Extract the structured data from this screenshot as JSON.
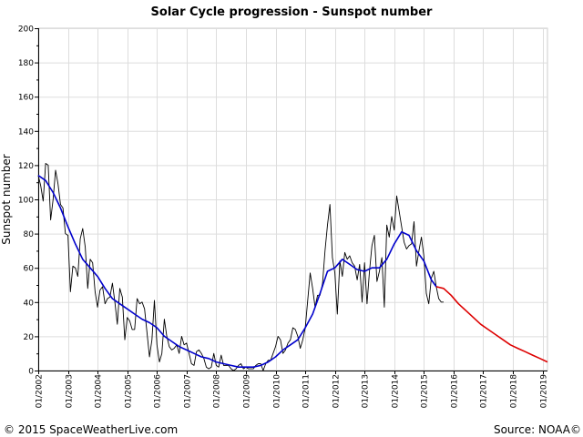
{
  "chart_data": {
    "type": "line",
    "title": "Solar Cycle progression - Sunspot number",
    "ylabel": "Sunspot number",
    "xlabel": "",
    "ylim": [
      0,
      200
    ],
    "yticks": [
      0,
      20,
      40,
      60,
      80,
      100,
      120,
      140,
      160,
      180,
      200
    ],
    "xlim": [
      "01/2002",
      "03/2019"
    ],
    "xticks": [
      "01/2002",
      "01/2003",
      "01/2004",
      "01/2005",
      "01/2006",
      "01/2007",
      "01/2008",
      "01/2009",
      "01/2010",
      "01/2011",
      "01/2012",
      "01/2013",
      "01/2014",
      "01/2015",
      "01/2016",
      "01/2017",
      "01/2018",
      "01/2019"
    ],
    "grid": true,
    "series": [
      {
        "role": "monthly",
        "color": "#000000",
        "points": [
          [
            "2002-01",
            114
          ],
          [
            "2002-02",
            108
          ],
          [
            "2002-03",
            99
          ],
          [
            "2002-04",
            121
          ],
          [
            "2002-05",
            120
          ],
          [
            "2002-06",
            88
          ],
          [
            "2002-07",
            100
          ],
          [
            "2002-08",
            117
          ],
          [
            "2002-09",
            109
          ],
          [
            "2002-10",
            97
          ],
          [
            "2002-11",
            95
          ],
          [
            "2002-12",
            80
          ],
          [
            "2003-01",
            79
          ],
          [
            "2003-02",
            46
          ],
          [
            "2003-03",
            61
          ],
          [
            "2003-04",
            60
          ],
          [
            "2003-05",
            55
          ],
          [
            "2003-06",
            77
          ],
          [
            "2003-07",
            83
          ],
          [
            "2003-08",
            72
          ],
          [
            "2003-09",
            48
          ],
          [
            "2003-10",
            65
          ],
          [
            "2003-11",
            63
          ],
          [
            "2003-12",
            46
          ],
          [
            "2004-01",
            37
          ],
          [
            "2004-02",
            47
          ],
          [
            "2004-03",
            49
          ],
          [
            "2004-04",
            39
          ],
          [
            "2004-05",
            42
          ],
          [
            "2004-06",
            43
          ],
          [
            "2004-07",
            51
          ],
          [
            "2004-08",
            40
          ],
          [
            "2004-09",
            27
          ],
          [
            "2004-10",
            48
          ],
          [
            "2004-11",
            43
          ],
          [
            "2004-12",
            18
          ],
          [
            "2005-01",
            31
          ],
          [
            "2005-02",
            29
          ],
          [
            "2005-03",
            24
          ],
          [
            "2005-04",
            24
          ],
          [
            "2005-05",
            42
          ],
          [
            "2005-06",
            39
          ],
          [
            "2005-07",
            40
          ],
          [
            "2005-08",
            36
          ],
          [
            "2005-09",
            22
          ],
          [
            "2005-10",
            8
          ],
          [
            "2005-11",
            18
          ],
          [
            "2005-12",
            41
          ],
          [
            "2006-01",
            15
          ],
          [
            "2006-02",
            5
          ],
          [
            "2006-03",
            10
          ],
          [
            "2006-04",
            30
          ],
          [
            "2006-05",
            20
          ],
          [
            "2006-06",
            14
          ],
          [
            "2006-07",
            12
          ],
          [
            "2006-08",
            13
          ],
          [
            "2006-09",
            15
          ],
          [
            "2006-10",
            10
          ],
          [
            "2006-11",
            20
          ],
          [
            "2006-12",
            15
          ],
          [
            "2007-01",
            16
          ],
          [
            "2007-02",
            10
          ],
          [
            "2007-03",
            4
          ],
          [
            "2007-04",
            3
          ],
          [
            "2007-05",
            11
          ],
          [
            "2007-06",
            12
          ],
          [
            "2007-07",
            10
          ],
          [
            "2007-08",
            7
          ],
          [
            "2007-09",
            2
          ],
          [
            "2007-10",
            1
          ],
          [
            "2007-11",
            2
          ],
          [
            "2007-12",
            10
          ],
          [
            "2008-01",
            3
          ],
          [
            "2008-02",
            2
          ],
          [
            "2008-03",
            9
          ],
          [
            "2008-04",
            3
          ],
          [
            "2008-05",
            3
          ],
          [
            "2008-06",
            3
          ],
          [
            "2008-07",
            1
          ],
          [
            "2008-08",
            0
          ],
          [
            "2008-09",
            1
          ],
          [
            "2008-10",
            3
          ],
          [
            "2008-11",
            4
          ],
          [
            "2008-12",
            1
          ],
          [
            "2009-01",
            2
          ],
          [
            "2009-02",
            1
          ],
          [
            "2009-03",
            1
          ],
          [
            "2009-04",
            1
          ],
          [
            "2009-05",
            3
          ],
          [
            "2009-06",
            4
          ],
          [
            "2009-07",
            4
          ],
          [
            "2009-08",
            0
          ],
          [
            "2009-09",
            4
          ],
          [
            "2009-10",
            6
          ],
          [
            "2009-11",
            6
          ],
          [
            "2009-12",
            10
          ],
          [
            "2010-01",
            14
          ],
          [
            "2010-02",
            20
          ],
          [
            "2010-03",
            18
          ],
          [
            "2010-04",
            10
          ],
          [
            "2010-05",
            12
          ],
          [
            "2010-06",
            16
          ],
          [
            "2010-07",
            18
          ],
          [
            "2010-08",
            25
          ],
          [
            "2010-09",
            24
          ],
          [
            "2010-10",
            20
          ],
          [
            "2010-11",
            13
          ],
          [
            "2010-12",
            18
          ],
          [
            "2011-01",
            25
          ],
          [
            "2011-02",
            41
          ],
          [
            "2011-03",
            57
          ],
          [
            "2011-04",
            48
          ],
          [
            "2011-05",
            37
          ],
          [
            "2011-06",
            44
          ],
          [
            "2011-07",
            44
          ],
          [
            "2011-08",
            51
          ],
          [
            "2011-09",
            70
          ],
          [
            "2011-10",
            85
          ],
          [
            "2011-11",
            97
          ],
          [
            "2011-12",
            66
          ],
          [
            "2012-01",
            57
          ],
          [
            "2012-02",
            33
          ],
          [
            "2012-03",
            64
          ],
          [
            "2012-04",
            55
          ],
          [
            "2012-05",
            69
          ],
          [
            "2012-06",
            65
          ],
          [
            "2012-07",
            67
          ],
          [
            "2012-08",
            63
          ],
          [
            "2012-09",
            61
          ],
          [
            "2012-10",
            53
          ],
          [
            "2012-11",
            62
          ],
          [
            "2012-12",
            40
          ],
          [
            "2013-01",
            63
          ],
          [
            "2013-02",
            39
          ],
          [
            "2013-03",
            58
          ],
          [
            "2013-04",
            73
          ],
          [
            "2013-05",
            79
          ],
          [
            "2013-06",
            52
          ],
          [
            "2013-07",
            58
          ],
          [
            "2013-08",
            66
          ],
          [
            "2013-09",
            37
          ],
          [
            "2013-10",
            85
          ],
          [
            "2013-11",
            78
          ],
          [
            "2013-12",
            90
          ],
          [
            "2014-01",
            82
          ],
          [
            "2014-02",
            102
          ],
          [
            "2014-03",
            93
          ],
          [
            "2014-04",
            84
          ],
          [
            "2014-05",
            75
          ],
          [
            "2014-06",
            71
          ],
          [
            "2014-07",
            73
          ],
          [
            "2014-08",
            74
          ],
          [
            "2014-09",
            87
          ],
          [
            "2014-10",
            61
          ],
          [
            "2014-11",
            70
          ],
          [
            "2014-12",
            78
          ],
          [
            "2015-01",
            67
          ],
          [
            "2015-02",
            45
          ],
          [
            "2015-03",
            39
          ],
          [
            "2015-04",
            54
          ],
          [
            "2015-05",
            58
          ],
          [
            "2015-06",
            49
          ],
          [
            "2015-07",
            42
          ],
          [
            "2015-08",
            40
          ],
          [
            "2015-09",
            40
          ]
        ]
      },
      {
        "role": "smoothed",
        "color": "#0000cc",
        "points": [
          [
            "2002-01",
            114
          ],
          [
            "2002-04",
            111
          ],
          [
            "2002-07",
            104
          ],
          [
            "2002-10",
            95
          ],
          [
            "2003-01",
            84
          ],
          [
            "2003-04",
            74
          ],
          [
            "2003-07",
            65
          ],
          [
            "2003-10",
            60
          ],
          [
            "2004-01",
            55
          ],
          [
            "2004-04",
            48
          ],
          [
            "2004-07",
            42
          ],
          [
            "2004-10",
            39
          ],
          [
            "2005-01",
            36
          ],
          [
            "2005-04",
            33
          ],
          [
            "2005-07",
            30
          ],
          [
            "2005-10",
            28
          ],
          [
            "2006-01",
            25
          ],
          [
            "2006-04",
            20
          ],
          [
            "2006-07",
            17
          ],
          [
            "2006-10",
            14
          ],
          [
            "2007-01",
            12
          ],
          [
            "2007-04",
            10
          ],
          [
            "2007-07",
            8
          ],
          [
            "2007-10",
            7
          ],
          [
            "2008-01",
            5
          ],
          [
            "2008-04",
            4
          ],
          [
            "2008-07",
            3
          ],
          [
            "2008-10",
            2
          ],
          [
            "2009-01",
            2
          ],
          [
            "2009-04",
            2
          ],
          [
            "2009-07",
            3
          ],
          [
            "2009-10",
            5
          ],
          [
            "2010-01",
            8
          ],
          [
            "2010-04",
            12
          ],
          [
            "2010-07",
            15
          ],
          [
            "2010-10",
            18
          ],
          [
            "2011-01",
            25
          ],
          [
            "2011-04",
            33
          ],
          [
            "2011-07",
            45
          ],
          [
            "2011-10",
            58
          ],
          [
            "2012-01",
            60
          ],
          [
            "2012-04",
            65
          ],
          [
            "2012-07",
            62
          ],
          [
            "2012-10",
            59
          ],
          [
            "2013-01",
            58
          ],
          [
            "2013-04",
            60
          ],
          [
            "2013-07",
            60
          ],
          [
            "2013-10",
            65
          ],
          [
            "2014-01",
            74
          ],
          [
            "2014-04",
            81
          ],
          [
            "2014-07",
            79
          ],
          [
            "2014-10",
            70
          ],
          [
            "2015-01",
            64
          ],
          [
            "2015-04",
            53
          ],
          [
            "2015-06",
            49
          ]
        ]
      },
      {
        "role": "predicted",
        "color": "#dd0000",
        "points": [
          [
            "2015-06",
            49
          ],
          [
            "2015-09",
            48
          ],
          [
            "2015-12",
            44
          ],
          [
            "2016-03",
            39
          ],
          [
            "2016-06",
            35
          ],
          [
            "2016-09",
            31
          ],
          [
            "2016-12",
            27
          ],
          [
            "2017-03",
            24
          ],
          [
            "2017-06",
            21
          ],
          [
            "2017-09",
            18
          ],
          [
            "2017-12",
            15
          ],
          [
            "2018-03",
            13
          ],
          [
            "2018-06",
            11
          ],
          [
            "2018-09",
            9
          ],
          [
            "2018-12",
            7
          ],
          [
            "2019-03",
            5
          ]
        ]
      }
    ]
  },
  "footer": {
    "copyright": "© 2015 SpaceWeatherLive.com",
    "source": "Source:  NOAA©"
  }
}
